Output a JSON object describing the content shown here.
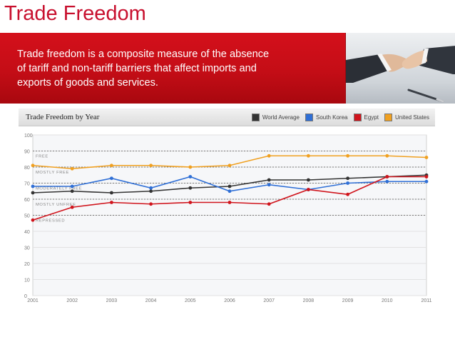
{
  "slide": {
    "title": "Trade Freedom",
    "description": "Trade freedom is a composite measure of the absence of tariff and non-tariff barriers that affect imports and exports of goods and services."
  },
  "colors": {
    "accent_red": "#c8102e",
    "world_average": "#333333",
    "south_korea": "#2f6fd6",
    "egypt": "#d0141c",
    "united_states": "#f0a020"
  },
  "chart_data": {
    "type": "line",
    "title": "Trade Freedom by Year",
    "x": [
      "2001",
      "2002",
      "2003",
      "2004",
      "2005",
      "2006",
      "2007",
      "2008",
      "2009",
      "2010",
      "2011"
    ],
    "ylim": [
      0,
      100
    ],
    "yticks": [
      0,
      10,
      20,
      30,
      40,
      50,
      60,
      70,
      80,
      90,
      100
    ],
    "grid": true,
    "legend_position": "top-right",
    "bands": [
      {
        "label": "FREE",
        "value": 90
      },
      {
        "label": "MOSTLY FREE",
        "value": 80
      },
      {
        "label": "MODERATELY FREE",
        "value": 70
      },
      {
        "label": "MOSTLY UNFREE",
        "value": 60
      },
      {
        "label": "REPRESSED",
        "value": 50
      }
    ],
    "series": [
      {
        "name": "World Average",
        "color": "#333333",
        "values": [
          64,
          65,
          64,
          65,
          67,
          68,
          72,
          72,
          73,
          74,
          75
        ]
      },
      {
        "name": "South Korea",
        "color": "#2f6fd6",
        "values": [
          68,
          68,
          73,
          67,
          74,
          65,
          69,
          66,
          70,
          71,
          71
        ]
      },
      {
        "name": "Egypt",
        "color": "#d0141c",
        "values": [
          47,
          55,
          58,
          57,
          58,
          58,
          57,
          66,
          63,
          74,
          74
        ]
      },
      {
        "name": "United States",
        "color": "#f0a020",
        "values": [
          81,
          79,
          81,
          81,
          80,
          81,
          87,
          87,
          87,
          87,
          86
        ]
      }
    ]
  }
}
